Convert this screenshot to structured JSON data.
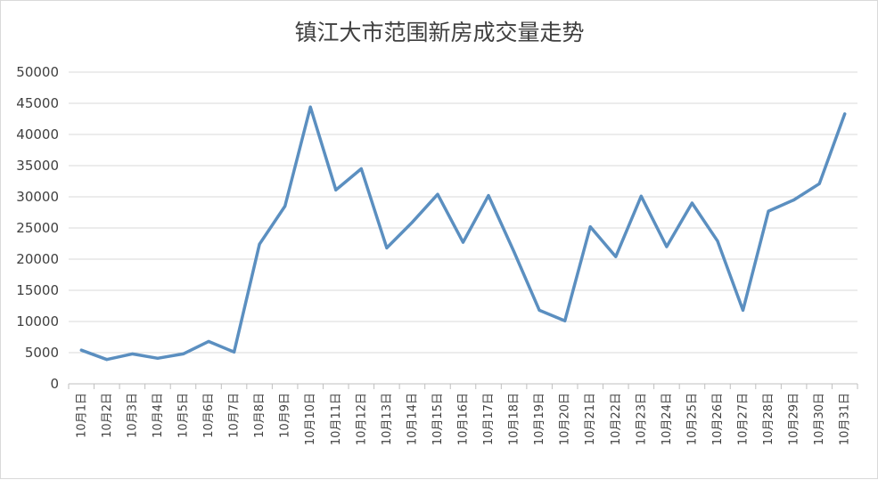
{
  "chart_data": {
    "type": "line",
    "title": "镇江大市范围新房成交量走势",
    "xlabel": "",
    "ylabel": "",
    "grid": true,
    "legend": "none",
    "ylim": [
      0,
      50000
    ],
    "yticks": [
      0,
      5000,
      10000,
      15000,
      20000,
      25000,
      30000,
      35000,
      40000,
      45000,
      50000
    ],
    "categories": [
      "10月1日",
      "10月2日",
      "10月3日",
      "10月4日",
      "10月5日",
      "10月6日",
      "10月7日",
      "10月8日",
      "10月9日",
      "10月10日",
      "10月11日",
      "10月12日",
      "10月13日",
      "10月14日",
      "10月15日",
      "10月16日",
      "10月17日",
      "10月18日",
      "10月19日",
      "10月20日",
      "10月21日",
      "10月22日",
      "10月23日",
      "10月24日",
      "10月25日",
      "10月26日",
      "10月27日",
      "10月28日",
      "10月29日",
      "10月30日",
      "10月31日"
    ],
    "series": [
      {
        "values": [
          5400,
          3900,
          4800,
          4100,
          4800,
          6800,
          5100,
          22400,
          28500,
          44400,
          31100,
          34500,
          21800,
          25900,
          30400,
          22700,
          30200,
          21200,
          11800,
          10100,
          25200,
          20400,
          30100,
          22000,
          29000,
          22900,
          11800,
          27700,
          29500,
          32100,
          43300
        ]
      }
    ],
    "colors": {
      "series": "#5b8fc0"
    }
  }
}
